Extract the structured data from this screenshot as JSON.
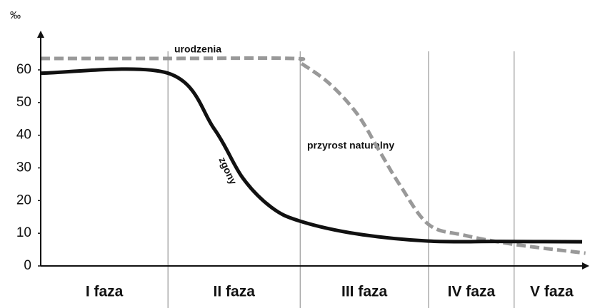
{
  "chart_data": {
    "type": "line",
    "y_label": "‰",
    "ylim": [
      0,
      72
    ],
    "yticks": [
      0,
      10,
      20,
      30,
      40,
      50,
      60
    ],
    "xlim": [
      0,
      100
    ],
    "phases": [
      {
        "label": "I faza",
        "start": 0,
        "end": 23.2
      },
      {
        "label": "II faza",
        "start": 23.2,
        "end": 47.3
      },
      {
        "label": "III faza",
        "start": 47.3,
        "end": 70.7
      },
      {
        "label": "IV faza",
        "start": 70.7,
        "end": 86.3
      },
      {
        "label": "V faza",
        "start": 86.3,
        "end": 100
      }
    ],
    "series": [
      {
        "name": "urodzenia",
        "color": "#999999",
        "dashed": true,
        "x": [
          0,
          23.2,
          46,
          47.3,
          52.5,
          57.7,
          61.6,
          65.5,
          70.7,
          77.2,
          86.3,
          99.3
        ],
        "values": [
          63.5,
          63.5,
          63.5,
          62.2,
          56,
          46.5,
          35.6,
          24.7,
          12.7,
          9.4,
          6.6,
          3.9
        ]
      },
      {
        "name": "zgony",
        "color": "#111111",
        "dashed": false,
        "x": [
          0,
          23.2,
          31.6,
          36.8,
          42,
          47.3,
          57.7,
          70.7,
          83.7,
          98.7
        ],
        "values": [
          59,
          59,
          42,
          27,
          18,
          13.7,
          9.8,
          7.6,
          7.5,
          7.4
        ]
      }
    ],
    "annotation": "przyrost naturalny"
  }
}
